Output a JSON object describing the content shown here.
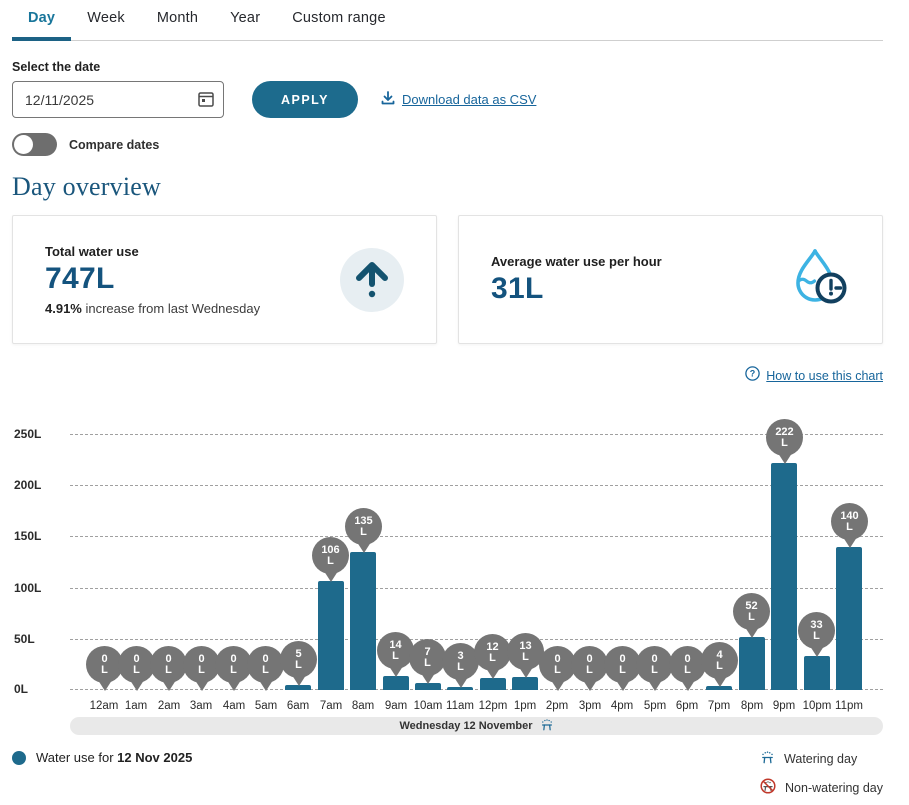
{
  "tabs": {
    "items": [
      {
        "label": "Day",
        "active": true
      },
      {
        "label": "Week",
        "active": false
      },
      {
        "label": "Month",
        "active": false
      },
      {
        "label": "Year",
        "active": false
      },
      {
        "label": "Custom range",
        "active": false
      }
    ]
  },
  "filters": {
    "label": "Select the date",
    "date_value": "12/11/2025",
    "apply_label": "APPLY",
    "download_label": "Download data as CSV",
    "compare_label": "Compare dates"
  },
  "overview": {
    "heading": "Day overview",
    "cards": [
      {
        "title": "Total water use",
        "value": "747L",
        "subtext_bold": "4.91%",
        "subtext_rest": " increase from last Wednesday",
        "icon": "arrow-up-circle-icon"
      },
      {
        "title": "Average water use per hour",
        "value": "31L",
        "icon": "water-drop-clock-icon"
      }
    ]
  },
  "how_to_label": "How to use this chart",
  "chart_data": {
    "type": "bar",
    "categories": [
      "12am",
      "1am",
      "2am",
      "3am",
      "4am",
      "5am",
      "6am",
      "7am",
      "8am",
      "9am",
      "10am",
      "11am",
      "12pm",
      "1pm",
      "2pm",
      "3pm",
      "4pm",
      "5pm",
      "6pm",
      "7pm",
      "8pm",
      "9pm",
      "10pm",
      "11pm"
    ],
    "values": [
      0,
      0,
      0,
      0,
      0,
      0,
      5,
      106,
      135,
      14,
      7,
      3,
      12,
      13,
      0,
      0,
      0,
      0,
      0,
      4,
      52,
      222,
      33,
      140
    ],
    "unit": "L",
    "ylim": [
      0,
      250
    ],
    "yticks": [
      0,
      50,
      100,
      150,
      200,
      250
    ],
    "grid": "dashed horizontal",
    "data_labels": "balloon pin above each bar, value + unit",
    "x_band_label": "Wednesday 12 November",
    "x_band_icon": "sprinkler-icon"
  },
  "legend": {
    "series_prefix": "Water use for ",
    "series_date": "12 Nov 2025",
    "watering_label": "Watering day",
    "non_watering_label": "Non-watering day"
  },
  "colors": {
    "accent_teal": "#1d6b8d",
    "bar": "#1e6a8c",
    "active_tab": "#19769b",
    "link": "#17659b",
    "heading": "#1a567c",
    "value_text": "#14537e",
    "pin_gray": "#757575",
    "light_blue": "#3db3e3",
    "navy": "#12405f",
    "no_water_red": "#c0392b",
    "band_bg": "#e9e9e9"
  }
}
